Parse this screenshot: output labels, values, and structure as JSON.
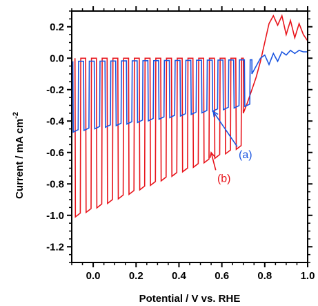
{
  "chart_data": {
    "type": "line",
    "xlabel": "Potential / V vs. RHE",
    "ylabel_main": "Current / mA cm",
    "ylabel_sup": "-2",
    "xlim": [
      -0.1,
      1.0
    ],
    "ylim": [
      -1.3,
      0.3
    ],
    "xticks": [
      "0.0",
      "0.2",
      "0.4",
      "0.6",
      "0.8",
      "1.0"
    ],
    "xtick_values": [
      0.0,
      0.2,
      0.4,
      0.6,
      0.8,
      1.0
    ],
    "yticks": [
      "0.2",
      "0.0",
      "-0.2",
      "-0.4",
      "-0.6",
      "-0.8",
      "-1.0",
      "-1.2"
    ],
    "ytick_values": [
      0.2,
      0.0,
      -0.2,
      -0.4,
      -0.6,
      -0.8,
      -1.0,
      -1.2
    ],
    "grid": false,
    "legend": "none",
    "series": [
      {
        "label": "(b)",
        "color": "#e8141b",
        "chopping": {
          "x_start": -0.085,
          "x_end": 0.7,
          "period_V": 0.05,
          "dark_current_start": 0.0,
          "dark_current_end": 0.0,
          "light_current_start": -1.01,
          "light_current_end": -0.56
        },
        "tail": {
          "x": [
            0.7,
            0.72,
            0.74,
            0.76,
            0.78,
            0.8,
            0.82,
            0.84,
            0.86,
            0.88,
            0.9,
            0.92,
            0.94,
            0.96,
            0.98,
            1.0
          ],
          "y": [
            -0.35,
            -0.28,
            -0.2,
            -0.12,
            -0.02,
            0.1,
            0.22,
            0.27,
            0.21,
            0.27,
            0.15,
            0.24,
            0.13,
            0.22,
            0.15,
            0.11
          ]
        }
      },
      {
        "label": "(a)",
        "color": "#1a55e0",
        "chopping": {
          "x_start": -0.095,
          "x_end": 0.74,
          "period_V": 0.05,
          "dark_current_start": -0.02,
          "dark_current_end": -0.01,
          "light_current_start": -0.47,
          "light_current_end": -0.3
        },
        "tail": {
          "x": [
            0.74,
            0.76,
            0.78,
            0.8,
            0.82,
            0.84,
            0.86,
            0.88,
            0.9,
            0.92,
            0.94,
            0.96,
            0.98,
            1.0
          ],
          "y": [
            -0.1,
            -0.05,
            0.0,
            0.02,
            -0.04,
            0.03,
            -0.02,
            0.04,
            0.02,
            0.05,
            0.03,
            0.05,
            0.04,
            0.04
          ]
        }
      }
    ],
    "annotations": [
      {
        "text": "(a)",
        "color": "#1a55e0",
        "x": 0.71,
        "y": -0.615,
        "arrow_to": [
          0.56,
          -0.34
        ]
      },
      {
        "text": "(b)",
        "color": "#e8141b",
        "x": 0.61,
        "y": -0.765,
        "arrow_to": [
          0.55,
          -0.6
        ]
      }
    ]
  }
}
